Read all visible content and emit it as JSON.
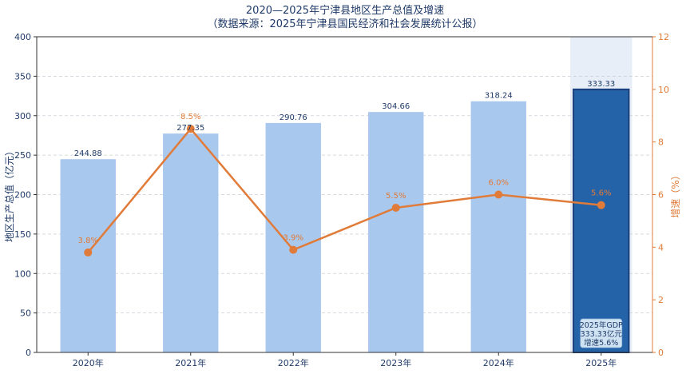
{
  "chart_data": {
    "type": "bar",
    "title": "2020—2025年宁津县地区生产总值及增速",
    "subtitle": "（数据来源：2025年宁津县国民经济和社会发展统计公报）",
    "categories": [
      "2020年",
      "2021年",
      "2022年",
      "2023年",
      "2024年",
      "2025年"
    ],
    "series": [
      {
        "type": "bar",
        "axis": "left",
        "values": [
          244.88,
          277.35,
          290.76,
          304.66,
          318.24,
          333.33
        ],
        "labels": [
          "244.88",
          "277.35",
          "290.76",
          "304.66",
          "318.24",
          "333.33"
        ]
      },
      {
        "type": "line",
        "axis": "right",
        "values": [
          3.8,
          8.5,
          3.9,
          5.5,
          6.0,
          5.6
        ],
        "labels": [
          "3.8%",
          "8.5%",
          "3.9%",
          "5.5%",
          "6.0%",
          "5.6%"
        ]
      }
    ],
    "ylabel": "地区生产总值（亿元）",
    "ylabel_right": "增速（%）",
    "ylim": [
      0,
      400
    ],
    "ylim_right": [
      0,
      12
    ],
    "yticks": [
      "0",
      "50",
      "100",
      "150",
      "200",
      "250",
      "300",
      "350",
      "400"
    ],
    "yticks_right": [
      "0",
      "2",
      "4",
      "6",
      "8",
      "10",
      "12"
    ],
    "grid": true,
    "highlight_category": "2025年",
    "annotation": [
      "2025年GDP",
      "333.33亿元",
      "增速5.6%"
    ],
    "colors": {
      "bar": "#a9c8ee",
      "bar_highlight": "#2563a8",
      "bar_highlight_border": "#1a3f7a",
      "line": "#e07b39",
      "highlight_bg": "#e8eef8",
      "note_bg": "#cfe3f3"
    }
  }
}
